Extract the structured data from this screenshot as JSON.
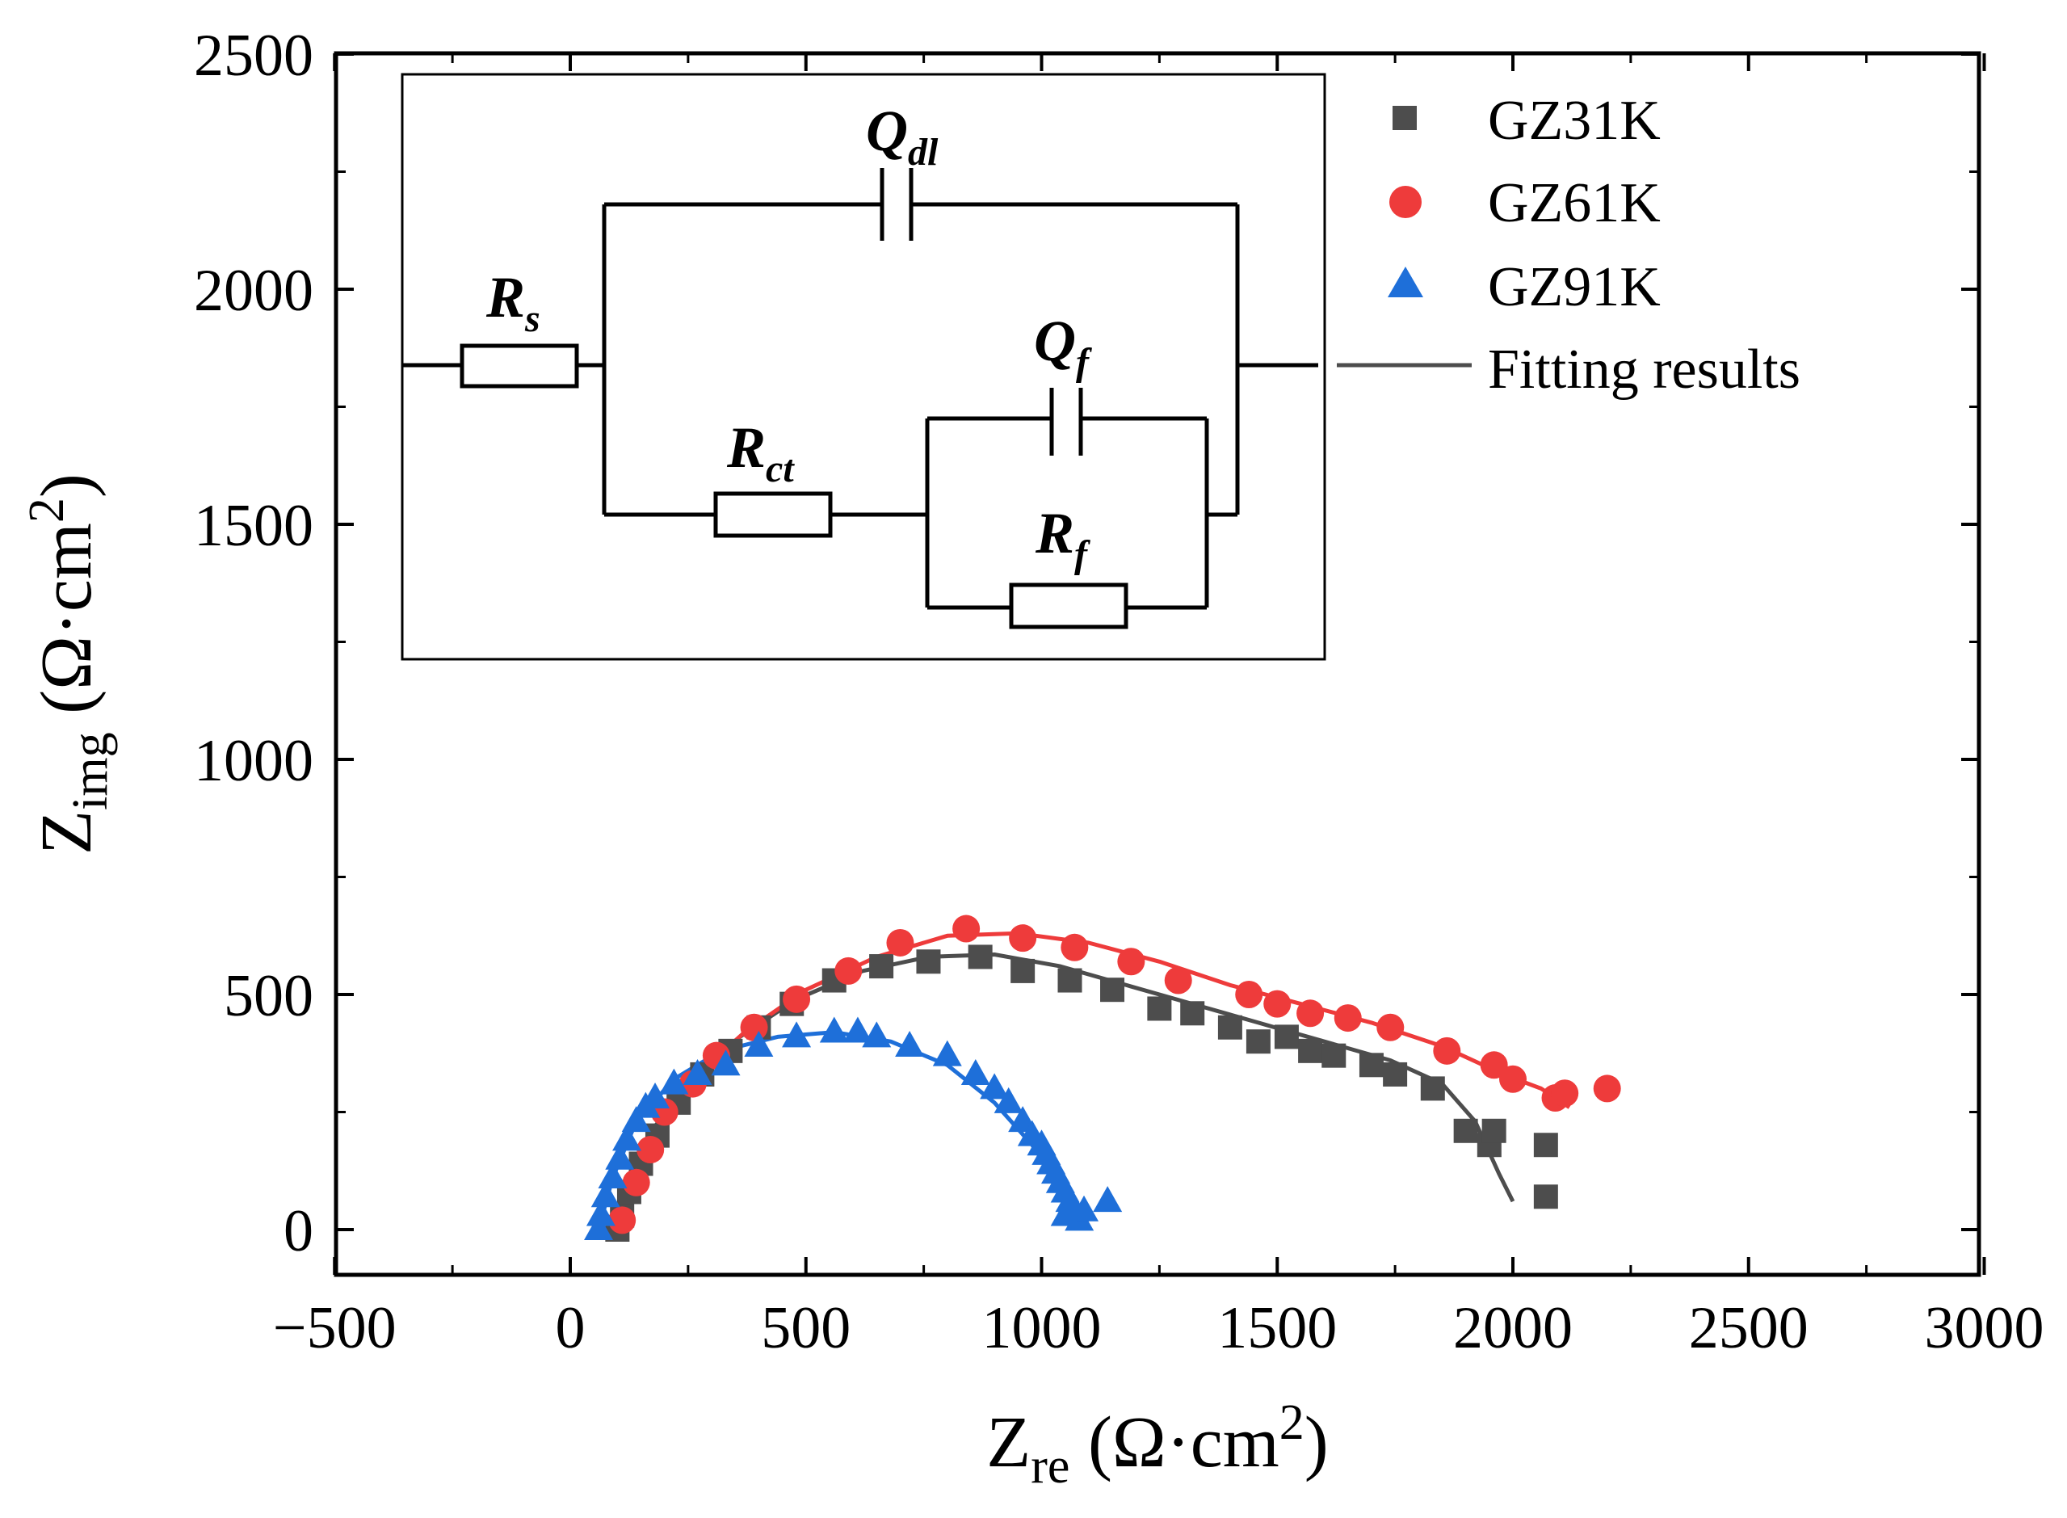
{
  "chart_data": {
    "type": "scatter",
    "title": "",
    "xlabel": {
      "main": "Z",
      "sub": "re",
      "unit": " (Ω·cm",
      "sup": "2",
      "close": ")"
    },
    "ylabel": {
      "main": "Z",
      "sub": "img",
      "unit": " (Ω·cm",
      "sup": "2",
      "close": ")"
    },
    "xlim": [
      -500,
      3000
    ],
    "ylim": [
      -100,
      2500
    ],
    "xticks": [
      -500,
      0,
      500,
      1000,
      1500,
      2000,
      2500,
      3000
    ],
    "yticks": [
      0,
      500,
      1000,
      1500,
      2000,
      2500
    ],
    "xtick_labels": [
      "−500",
      "0",
      "500",
      "1000",
      "1500",
      "2000",
      "2500",
      "3000"
    ],
    "ytick_labels": [
      "0",
      "500",
      "1000",
      "1500",
      "2000",
      "2500"
    ],
    "legend_position": "top-right",
    "series": [
      {
        "name": "GZ31K",
        "marker": "square",
        "color": "#4d4d4d",
        "points": [
          [
            100,
            0
          ],
          [
            110,
            30
          ],
          [
            125,
            80
          ],
          [
            150,
            140
          ],
          [
            185,
            200
          ],
          [
            230,
            270
          ],
          [
            280,
            330
          ],
          [
            340,
            380
          ],
          [
            400,
            430
          ],
          [
            470,
            480
          ],
          [
            560,
            530
          ],
          [
            660,
            560
          ],
          [
            760,
            570
          ],
          [
            870,
            580
          ],
          [
            960,
            550
          ],
          [
            1060,
            530
          ],
          [
            1150,
            510
          ],
          [
            1250,
            470
          ],
          [
            1320,
            460
          ],
          [
            1400,
            430
          ],
          [
            1460,
            400
          ],
          [
            1520,
            410
          ],
          [
            1570,
            380
          ],
          [
            1620,
            370
          ],
          [
            1700,
            350
          ],
          [
            1750,
            330
          ],
          [
            1830,
            300
          ],
          [
            1900,
            210
          ],
          [
            1950,
            180
          ],
          [
            1960,
            210
          ],
          [
            2070,
            180
          ],
          [
            2070,
            70
          ]
        ]
      },
      {
        "name": "GZ61K",
        "marker": "circle",
        "color": "#ee3b3b",
        "points": [
          [
            110,
            20
          ],
          [
            140,
            100
          ],
          [
            170,
            170
          ],
          [
            200,
            250
          ],
          [
            260,
            310
          ],
          [
            310,
            370
          ],
          [
            390,
            430
          ],
          [
            480,
            490
          ],
          [
            590,
            550
          ],
          [
            700,
            610
          ],
          [
            840,
            640
          ],
          [
            960,
            620
          ],
          [
            1070,
            600
          ],
          [
            1190,
            570
          ],
          [
            1290,
            530
          ],
          [
            1440,
            500
          ],
          [
            1500,
            480
          ],
          [
            1570,
            460
          ],
          [
            1650,
            450
          ],
          [
            1740,
            430
          ],
          [
            1860,
            380
          ],
          [
            1960,
            350
          ],
          [
            2000,
            320
          ],
          [
            2090,
            280
          ],
          [
            2110,
            290
          ],
          [
            2200,
            300
          ]
        ]
      },
      {
        "name": "GZ91K",
        "marker": "triangle",
        "color": "#1e6fd9",
        "points": [
          [
            60,
            0
          ],
          [
            65,
            30
          ],
          [
            75,
            70
          ],
          [
            90,
            110
          ],
          [
            105,
            150
          ],
          [
            120,
            190
          ],
          [
            140,
            230
          ],
          [
            160,
            260
          ],
          [
            180,
            280
          ],
          [
            220,
            310
          ],
          [
            270,
            330
          ],
          [
            330,
            350
          ],
          [
            400,
            390
          ],
          [
            480,
            410
          ],
          [
            560,
            420
          ],
          [
            610,
            420
          ],
          [
            650,
            410
          ],
          [
            720,
            390
          ],
          [
            800,
            370
          ],
          [
            860,
            330
          ],
          [
            900,
            300
          ],
          [
            930,
            270
          ],
          [
            960,
            230
          ],
          [
            980,
            200
          ],
          [
            1000,
            180
          ],
          [
            1010,
            160
          ],
          [
            1020,
            140
          ],
          [
            1030,
            120
          ],
          [
            1040,
            100
          ],
          [
            1050,
            80
          ],
          [
            1060,
            60
          ],
          [
            1070,
            40
          ],
          [
            1080,
            20
          ],
          [
            1090,
            40
          ],
          [
            1140,
            60
          ],
          [
            1050,
            30
          ]
        ]
      }
    ],
    "fits": [
      {
        "name": "GZ31K fit",
        "color": "#4d4d4d",
        "points": [
          [
            100,
            0
          ],
          [
            130,
            110
          ],
          [
            180,
            220
          ],
          [
            260,
            320
          ],
          [
            360,
            410
          ],
          [
            480,
            490
          ],
          [
            620,
            550
          ],
          [
            760,
            580
          ],
          [
            900,
            585
          ],
          [
            1040,
            560
          ],
          [
            1180,
            520
          ],
          [
            1320,
            480
          ],
          [
            1460,
            440
          ],
          [
            1600,
            400
          ],
          [
            1740,
            360
          ],
          [
            1850,
            310
          ],
          [
            1920,
            230
          ],
          [
            1970,
            120
          ],
          [
            2000,
            60
          ]
        ]
      },
      {
        "name": "GZ61K fit",
        "color": "#ee3b3b",
        "points": [
          [
            110,
            0
          ],
          [
            140,
            120
          ],
          [
            190,
            230
          ],
          [
            270,
            330
          ],
          [
            370,
            420
          ],
          [
            500,
            510
          ],
          [
            650,
            580
          ],
          [
            800,
            625
          ],
          [
            950,
            630
          ],
          [
            1100,
            610
          ],
          [
            1250,
            570
          ],
          [
            1400,
            520
          ],
          [
            1550,
            480
          ],
          [
            1700,
            440
          ],
          [
            1850,
            390
          ],
          [
            1980,
            330
          ],
          [
            2060,
            300
          ],
          [
            2120,
            260
          ]
        ]
      },
      {
        "name": "GZ91K fit",
        "color": "#1e6fd9",
        "points": [
          [
            60,
            0
          ],
          [
            90,
            110
          ],
          [
            140,
            230
          ],
          [
            220,
            320
          ],
          [
            320,
            380
          ],
          [
            440,
            410
          ],
          [
            560,
            420
          ],
          [
            680,
            400
          ],
          [
            800,
            350
          ],
          [
            900,
            270
          ],
          [
            980,
            180
          ],
          [
            1040,
            90
          ],
          [
            1070,
            30
          ]
        ]
      }
    ],
    "legend": [
      {
        "label": "GZ31K",
        "marker": "square",
        "color": "#4d4d4d"
      },
      {
        "label": "GZ61K",
        "marker": "circle",
        "color": "#ee3b3b"
      },
      {
        "label": "GZ91K",
        "marker": "triangle",
        "color": "#1e6fd9"
      },
      {
        "label": "Fitting results",
        "marker": "line",
        "color": "#4d4d4d"
      }
    ],
    "inset_circuit": {
      "labels": [
        {
          "main": "Q",
          "sub": "dl"
        },
        {
          "main": "R",
          "sub": "s"
        },
        {
          "main": "Q",
          "sub": "f"
        },
        {
          "main": "R",
          "sub": "ct"
        },
        {
          "main": "R",
          "sub": "f"
        }
      ]
    }
  }
}
